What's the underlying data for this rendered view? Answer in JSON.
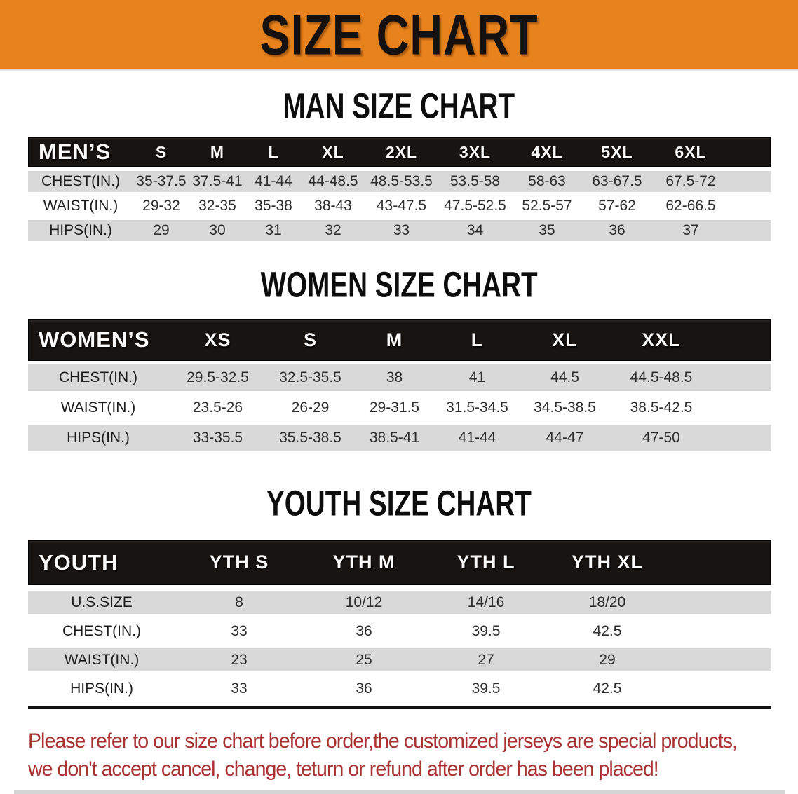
{
  "banner": {
    "title": "SIZE CHART"
  },
  "men": {
    "heading": "MAN SIZE CHART",
    "label": "MEN’S",
    "sizes": [
      "S",
      "M",
      "L",
      "XL",
      "2XL",
      "3XL",
      "4XL",
      "5XL",
      "6XL"
    ],
    "rows": [
      {
        "label": "CHEST(IN.)",
        "values": [
          "35-37.5",
          "37.5-41",
          "41-44",
          "44-48.5",
          "48.5-53.5",
          "53.5-58",
          "58-63",
          "63-67.5",
          "67.5-72"
        ]
      },
      {
        "label": "WAIST(IN.)",
        "values": [
          "29-32",
          "32-35",
          "35-38",
          "38-43",
          "43-47.5",
          "47.5-52.5",
          "52.5-57",
          "57-62",
          "62-66.5"
        ]
      },
      {
        "label": "HIPS(IN.)",
        "values": [
          "29",
          "30",
          "31",
          "32",
          "33",
          "34",
          "35",
          "36",
          "37"
        ]
      }
    ]
  },
  "women": {
    "heading": "WOMEN SIZE CHART",
    "label": "WOMEN’S",
    "sizes": [
      "XS",
      "S",
      "M",
      "L",
      "XL",
      "XXL"
    ],
    "rows": [
      {
        "label": "CHEST(IN.)",
        "values": [
          "29.5-32.5",
          "32.5-35.5",
          "38",
          "41",
          "44.5",
          "44.5-48.5"
        ]
      },
      {
        "label": "WAIST(IN.)",
        "values": [
          "23.5-26",
          "26-29",
          "29-31.5",
          "31.5-34.5",
          "34.5-38.5",
          "38.5-42.5"
        ]
      },
      {
        "label": "HIPS(IN.)",
        "values": [
          "33-35.5",
          "35.5-38.5",
          "38.5-41",
          "41-44",
          "44-47",
          "47-50"
        ]
      }
    ]
  },
  "youth": {
    "heading": "YOUTH SIZE CHART",
    "label": "YOUTH",
    "sizes": [
      "YTH S",
      "YTH M",
      "YTH L",
      "YTH XL"
    ],
    "rows": [
      {
        "label": "U.S.SIZE",
        "values": [
          "8",
          "10/12",
          "14/16",
          "18/20"
        ]
      },
      {
        "label": "CHEST(IN.)",
        "values": [
          "33",
          "36",
          "39.5",
          "42.5"
        ]
      },
      {
        "label": "WAIST(IN.)",
        "values": [
          "23",
          "25",
          "27",
          "29"
        ]
      },
      {
        "label": "HIPS(IN.)",
        "values": [
          "33",
          "36",
          "39.5",
          "42.5"
        ]
      }
    ]
  },
  "footer": {
    "line1": "Please refer to our size chart before order,the customized jerseys are special products,",
    "line2": "we don't accept cancel, change, teturn or refund after order has been placed!"
  },
  "colors": {
    "banner_bg": "#E8821C",
    "header_bar": "#181412",
    "row_gray": "#D9D9D9",
    "footer_red": "#A93232"
  }
}
